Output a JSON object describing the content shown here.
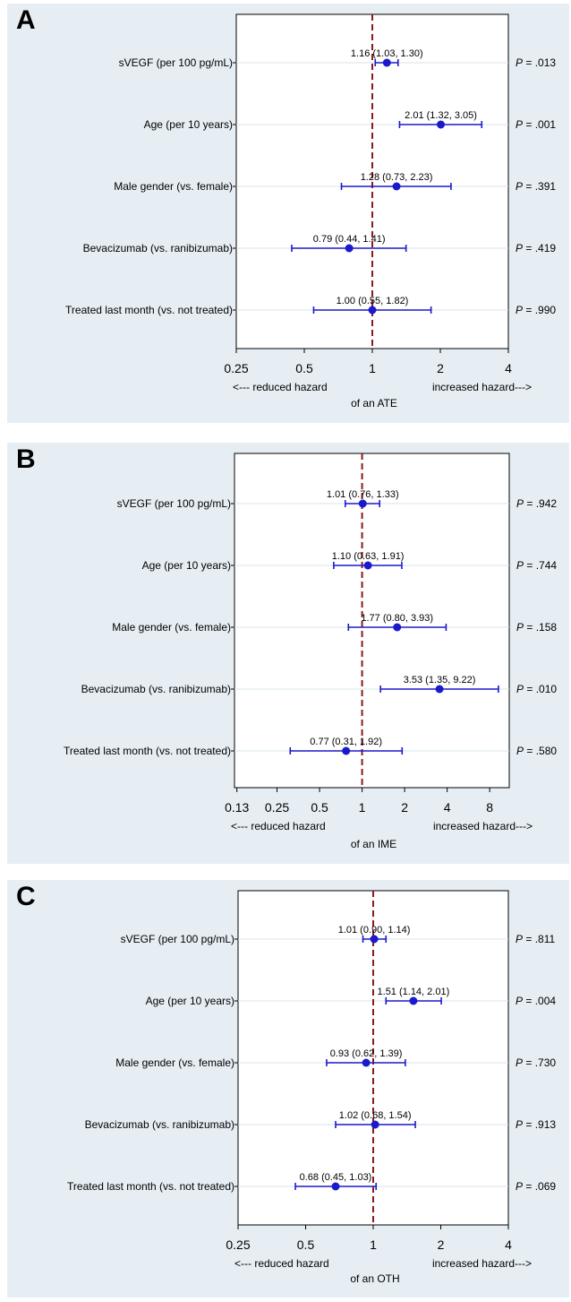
{
  "colors": {
    "panel_bg": "#e6eef3",
    "plot_bg": "#ffffff",
    "marker": "#1a1acc",
    "reference_line": "#8b1a1a",
    "gridline": "#d9e4ea"
  },
  "labels": [
    "sVEGF (per 100 pg/mL)",
    "Age (per 10 years)",
    "Male gender (vs. female)",
    "Bevacizumab (vs. ranibizumab)",
    "Treated last month (vs. not treated)"
  ],
  "chart_data": [
    {
      "type": "scatter",
      "panel": "A",
      "xscale": "log",
      "xlim": [
        0.25,
        4
      ],
      "xticks": [
        "0.25",
        "0.5",
        "1",
        "2",
        "4"
      ],
      "xlabel_left": "<--- reduced hazard",
      "xlabel_right": "increased hazard--->",
      "xlabel": "of an ATE",
      "reference_line": 1,
      "p_prefix": "P",
      "rows": [
        {
          "label": "sVEGF (per 100 pg/mL)",
          "estimate": 1.16,
          "lo": 1.03,
          "hi": 1.3,
          "text": "1.16 (1.03, 1.30)",
          "p": "= .013"
        },
        {
          "label": "Age (per 10 years)",
          "estimate": 2.01,
          "lo": 1.32,
          "hi": 3.05,
          "text": "2.01 (1.32, 3.05)",
          "p": "= .001"
        },
        {
          "label": "Male gender (vs. female)",
          "estimate": 1.28,
          "lo": 0.73,
          "hi": 2.23,
          "text": "1.28 (0.73, 2.23)",
          "p": "= .391"
        },
        {
          "label": "Bevacizumab (vs. ranibizumab)",
          "estimate": 0.79,
          "lo": 0.44,
          "hi": 1.41,
          "text": "0.79 (0.44, 1.41)",
          "p": "= .419"
        },
        {
          "label": "Treated last month (vs. not treated)",
          "estimate": 1.0,
          "lo": 0.55,
          "hi": 1.82,
          "text": "1.00 (0.55, 1.82)",
          "p": "= .990"
        }
      ]
    },
    {
      "type": "scatter",
      "panel": "B",
      "xscale": "log",
      "xlim": [
        0.125,
        11
      ],
      "xticks": [
        "0.13",
        "0.25",
        "0.5",
        "1",
        "2",
        "4",
        "8"
      ],
      "xlabel_left": "<--- reduced hazard",
      "xlabel_right": "increased hazard--->",
      "xlabel": "of an IME",
      "reference_line": 1,
      "p_prefix": "P",
      "rows": [
        {
          "label": "sVEGF (per 100 pg/mL)",
          "estimate": 1.01,
          "lo": 0.76,
          "hi": 1.33,
          "text": "1.01 (0.76, 1.33)",
          "p": "= .942"
        },
        {
          "label": "Age (per 10 years)",
          "estimate": 1.1,
          "lo": 0.63,
          "hi": 1.91,
          "text": "1.10 (0.63, 1.91)",
          "p": "= .744"
        },
        {
          "label": "Male gender (vs. female)",
          "estimate": 1.77,
          "lo": 0.8,
          "hi": 3.93,
          "text": "1.77 (0.80, 3.93)",
          "p": "= .158"
        },
        {
          "label": "Bevacizumab (vs. ranibizumab)",
          "estimate": 3.53,
          "lo": 1.35,
          "hi": 9.22,
          "text": "3.53 (1.35, 9.22)",
          "p": "= .010"
        },
        {
          "label": "Treated last month (vs. not treated)",
          "estimate": 0.77,
          "lo": 0.31,
          "hi": 1.92,
          "text": "0.77 (0.31, 1.92)",
          "p": "= .580"
        }
      ]
    },
    {
      "type": "scatter",
      "panel": "C",
      "xscale": "log",
      "xlim": [
        0.25,
        4
      ],
      "xticks": [
        "0.25",
        "0.5",
        "1",
        "2",
        "4"
      ],
      "xlabel_left": "<--- reduced hazard",
      "xlabel_right": "increased hazard--->",
      "xlabel": "of an OTH",
      "reference_line": 1,
      "p_prefix": "P",
      "rows": [
        {
          "label": "sVEGF (per 100 pg/mL)",
          "estimate": 1.01,
          "lo": 0.9,
          "hi": 1.14,
          "text": "1.01 (0.90, 1.14)",
          "p": "= .811"
        },
        {
          "label": "Age (per 10 years)",
          "estimate": 1.51,
          "lo": 1.14,
          "hi": 2.01,
          "text": "1.51 (1.14, 2.01)",
          "p": "= .004"
        },
        {
          "label": "Male gender (vs. female)",
          "estimate": 0.93,
          "lo": 0.62,
          "hi": 1.39,
          "text": "0.93 (0.62, 1.39)",
          "p": "= .730"
        },
        {
          "label": "Bevacizumab (vs. ranibizumab)",
          "estimate": 1.02,
          "lo": 0.68,
          "hi": 1.54,
          "text": "1.02 (0.68, 1.54)",
          "p": "= .913"
        },
        {
          "label": "Treated last month (vs. not treated)",
          "estimate": 0.68,
          "lo": 0.45,
          "hi": 1.03,
          "text": "0.68 (0.45, 1.03)",
          "p": "= .069"
        }
      ]
    }
  ]
}
